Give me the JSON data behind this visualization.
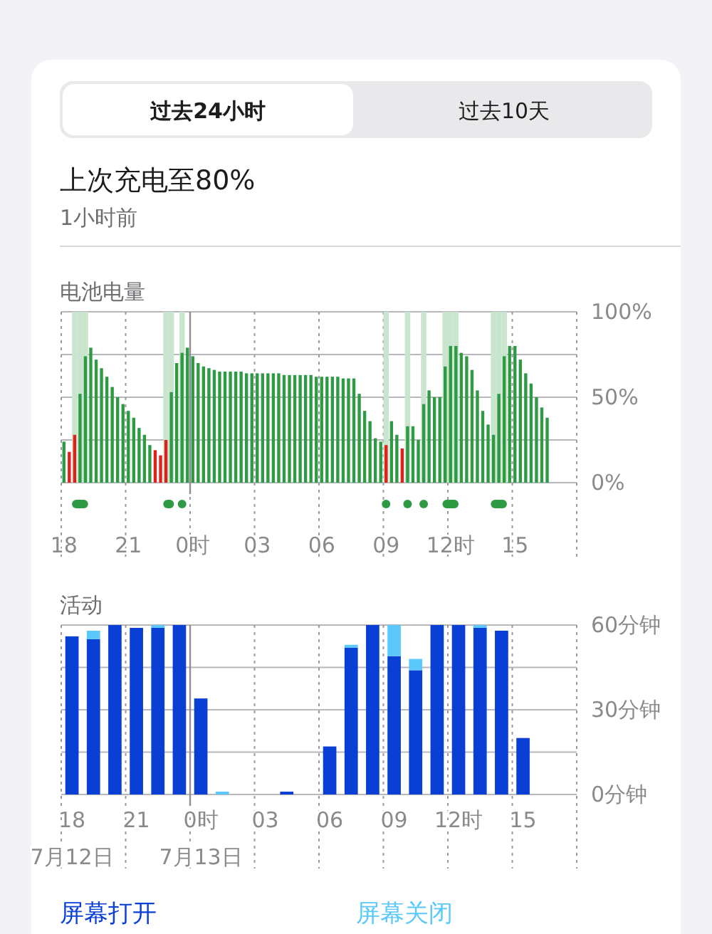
{
  "chart_data": [
    {
      "type": "other",
      "title": "上次充电至80%",
      "subtitle": "1小时前",
      "annotations": [
        "过去24小时",
        "过去10天"
      ]
    },
    {
      "type": "bar",
      "title": "电池电量",
      "categories": [
        "18",
        null,
        null,
        null,
        null,
        null,
        null,
        null,
        null,
        null,
        null,
        null,
        "21",
        null,
        null,
        null,
        null,
        null,
        null,
        null,
        null,
        null,
        null,
        null,
        "0时",
        null,
        null,
        null,
        null,
        null,
        null,
        null,
        null,
        null,
        null,
        null,
        "03",
        null,
        null,
        null,
        null,
        null,
        null,
        null,
        null,
        null,
        null,
        null,
        "06",
        null,
        null,
        null,
        null,
        null,
        null,
        null,
        null,
        null,
        null,
        null,
        "09",
        null,
        null,
        null,
        null,
        null,
        null,
        null,
        null,
        null,
        null,
        null,
        "12时",
        null,
        null,
        null,
        null,
        null,
        null,
        null,
        null,
        null,
        null,
        null,
        "15",
        null,
        null,
        null,
        null,
        null,
        null,
        null,
        null,
        null,
        null,
        null
      ],
      "series": [
        {
          "color": "#c9e5cd",
          "values": [
            null,
            null,
            100,
            100,
            100,
            null,
            null,
            null,
            null,
            null,
            null,
            null,
            null,
            null,
            null,
            null,
            null,
            null,
            null,
            100,
            100,
            null,
            100,
            null,
            null,
            null,
            null,
            null,
            null,
            null,
            null,
            null,
            null,
            null,
            null,
            null,
            null,
            null,
            null,
            null,
            null,
            null,
            null,
            null,
            null,
            null,
            null,
            null,
            null,
            null,
            null,
            null,
            null,
            null,
            null,
            null,
            null,
            null,
            null,
            null,
            100,
            null,
            null,
            null,
            100,
            null,
            null,
            100,
            null,
            null,
            null,
            100,
            100,
            100,
            null,
            null,
            null,
            null,
            null,
            null,
            100,
            100,
            100,
            null,
            null,
            null,
            null,
            null,
            null,
            null,
            null,
            null,
            null,
            null,
            null,
            null
          ]
        },
        {
          "values": [
            24,
            18,
            28,
            52,
            74,
            79,
            72,
            67,
            62,
            56,
            50,
            46,
            42,
            38,
            32,
            28,
            22,
            19,
            16,
            25,
            53,
            70,
            76,
            79,
            74,
            70,
            68,
            67,
            66,
            65,
            65,
            65,
            65,
            65,
            64,
            64,
            64,
            64,
            64,
            64,
            64,
            63,
            63,
            63,
            63,
            63,
            63,
            62,
            62,
            62,
            62,
            62,
            61,
            61,
            61,
            52,
            42,
            36,
            26,
            24,
            22,
            36,
            28,
            20,
            33,
            33,
            25,
            46,
            54,
            50,
            50,
            68,
            80,
            80,
            76,
            74,
            66,
            54,
            42,
            34,
            28,
            52,
            74,
            80,
            80,
            72,
            64,
            58,
            50,
            44,
            38,
            null,
            null,
            null,
            null,
            null
          ],
          "colors": [
            "#2e9a44",
            "#e0201b",
            "#e0201b",
            "#2e9a44",
            "#2e9a44",
            "#2e9a44",
            "#2e9a44",
            "#2e9a44",
            "#2e9a44",
            "#2e9a44",
            "#2e9a44",
            "#2e9a44",
            "#2e9a44",
            "#2e9a44",
            "#2e9a44",
            "#2e9a44",
            "#2e9a44",
            "#e0201b",
            "#e0201b",
            "#e0201b",
            "#2e9a44",
            "#2e9a44",
            "#2e9a44",
            "#2e9a44",
            "#2e9a44",
            "#2e9a44",
            "#2e9a44",
            "#2e9a44",
            "#2e9a44",
            "#2e9a44",
            "#2e9a44",
            "#2e9a44",
            "#2e9a44",
            "#2e9a44",
            "#2e9a44",
            "#2e9a44",
            "#2e9a44",
            "#2e9a44",
            "#2e9a44",
            "#2e9a44",
            "#2e9a44",
            "#2e9a44",
            "#2e9a44",
            "#2e9a44",
            "#2e9a44",
            "#2e9a44",
            "#2e9a44",
            "#2e9a44",
            "#2e9a44",
            "#2e9a44",
            "#2e9a44",
            "#2e9a44",
            "#2e9a44",
            "#2e9a44",
            "#2e9a44",
            "#2e9a44",
            "#2e9a44",
            "#2e9a44",
            "#2e9a44",
            "#2e9a44",
            "#e0201b",
            "#2e9a44",
            "#2e9a44",
            "#e0201b",
            "#2e9a44",
            "#2e9a44",
            "#2e9a44",
            "#2e9a44",
            "#2e9a44",
            "#2e9a44",
            "#2e9a44",
            "#2e9a44",
            "#2e9a44",
            "#2e9a44",
            "#2e9a44",
            "#2e9a44",
            "#2e9a44",
            "#2e9a44",
            "#2e9a44",
            "#2e9a44",
            "#2e9a44",
            "#2e9a44",
            "#2e9a44",
            "#2e9a44",
            "#2e9a44",
            "#2e9a44",
            "#2e9a44",
            "#2e9a44",
            "#2e9a44",
            "#2e9a44",
            "#2e9a44",
            null,
            null,
            null,
            null,
            null
          ]
        }
      ],
      "ylim": [
        0,
        100
      ],
      "yticks": [
        {
          "value": 0,
          "label": "0%"
        },
        {
          "value": 25,
          "label": null
        },
        {
          "value": 50,
          "label": "50%"
        },
        {
          "value": 75,
          "label": null
        },
        {
          "value": 100,
          "label": "100%"
        }
      ],
      "grid": true,
      "ref_lines": [
        {
          "axis": "x",
          "value": "0时",
          "color": "#8e8e93"
        }
      ]
    },
    {
      "type": "bar",
      "title": "活动",
      "stacked": true,
      "legend": "bottom",
      "categories": [
        "18\n7月12日",
        null,
        null,
        "21",
        null,
        null,
        "0时\n7月13日",
        null,
        null,
        "03",
        null,
        null,
        "06",
        null,
        null,
        "09",
        null,
        null,
        "12时",
        null,
        null,
        "15",
        null,
        null
      ],
      "series": [
        {
          "name": "屏幕打开",
          "color": "#0a3fd6",
          "values": [
            56,
            55,
            60,
            59,
            59,
            60,
            34,
            0,
            0,
            0,
            1,
            0,
            17,
            52,
            60,
            49,
            44,
            60,
            60,
            59,
            58,
            20,
            null,
            null
          ]
        },
        {
          "name": "屏幕关闭",
          "color": "#5ac8fa",
          "values": [
            0,
            3,
            0,
            0,
            1,
            0,
            0,
            1,
            0,
            0,
            0,
            0,
            0,
            1,
            0,
            11,
            4,
            0,
            0,
            1,
            0,
            0,
            null,
            null
          ]
        }
      ],
      "ylim": [
        0,
        60
      ],
      "yticks": [
        {
          "value": 0,
          "label": "0分钟"
        },
        {
          "value": 15,
          "label": null
        },
        {
          "value": 30,
          "label": "30分钟"
        },
        {
          "value": 45,
          "label": null
        },
        {
          "value": 60,
          "label": "60分钟"
        }
      ],
      "grid": true,
      "ref_lines": [
        {
          "axis": "x",
          "value": "0时\n7月13日",
          "color": "#8e8e93"
        }
      ]
    }
  ]
}
